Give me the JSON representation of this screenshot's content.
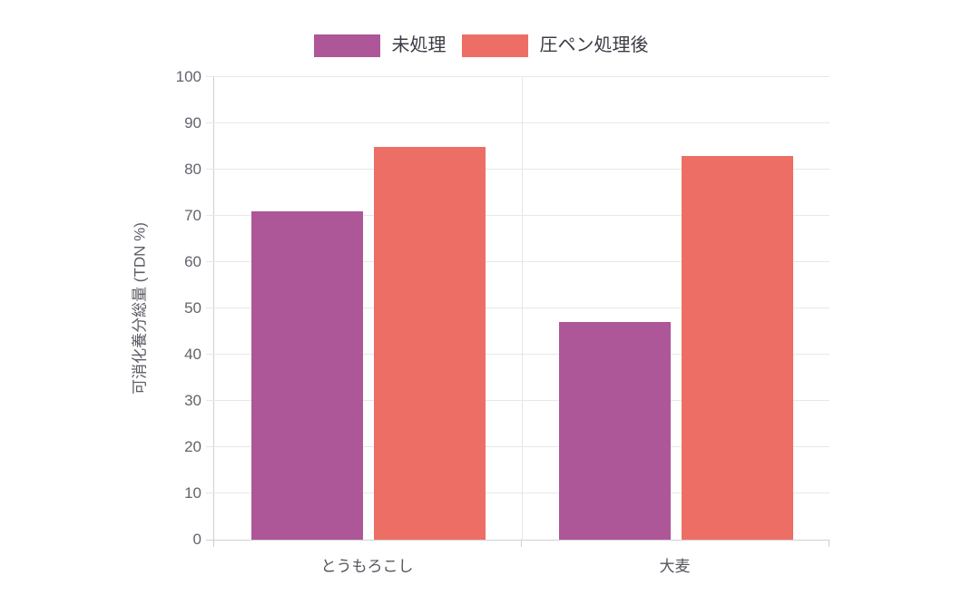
{
  "chart_data": {
    "type": "bar",
    "title": "",
    "categories": [
      "とうもろこし",
      "大麦"
    ],
    "series": [
      {
        "name": "未処理",
        "color": "#ad5698",
        "values": [
          71,
          47
        ]
      },
      {
        "name": "圧ペン処理後",
        "color": "#ed6e64",
        "values": [
          85,
          83
        ]
      }
    ],
    "ylabel": "可消化養分総量 (TDN %)",
    "ylim": [
      0,
      100
    ],
    "yticks": [
      0,
      10,
      20,
      30,
      40,
      50,
      60,
      70,
      80,
      90,
      100
    ],
    "grid": true,
    "legend_position": "top"
  },
  "colors": {
    "grid": "#e7e7ec",
    "axis": "#cfcfd6",
    "tick_label": "#63636d",
    "axis_title": "#5c5c66",
    "legend_text": "#3c3c46",
    "background": "#ffffff"
  }
}
